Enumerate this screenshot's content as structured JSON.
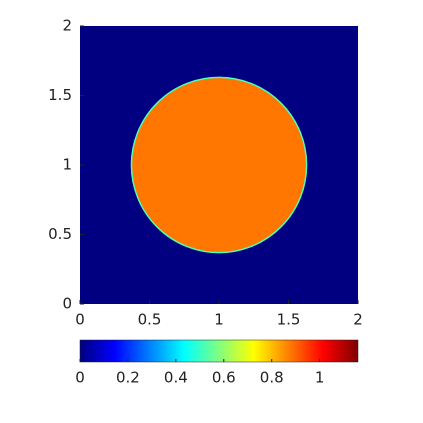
{
  "chart_data": {
    "type": "field",
    "xlim": [
      0,
      2
    ],
    "ylim": [
      0,
      2
    ],
    "xticks": [
      0,
      0.5,
      1,
      1.5,
      2
    ],
    "yticks": [
      0,
      0.5,
      1,
      1.5,
      2
    ],
    "background_value": 0,
    "circle": {
      "cx": 1,
      "cy": 1,
      "r": 0.63,
      "value": 0.88
    },
    "colormap": "jet",
    "clim": [
      0,
      1.16
    ],
    "cticks": [
      0,
      0.2,
      0.4,
      0.6,
      0.8,
      1
    ]
  }
}
